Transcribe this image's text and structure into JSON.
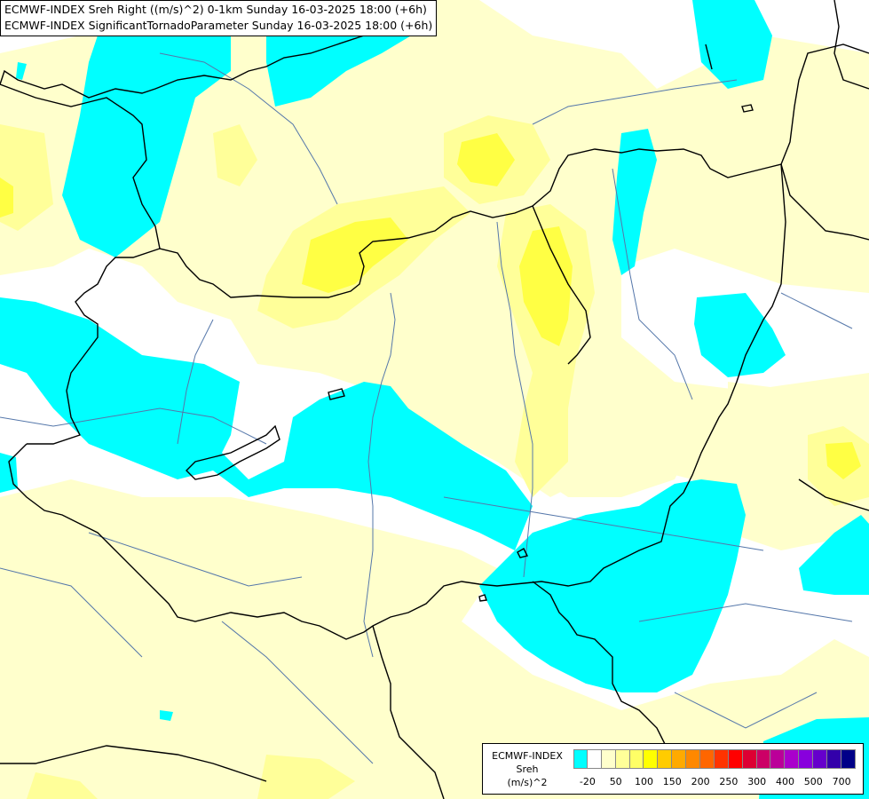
{
  "titles": {
    "line1": "ECMWF-INDEX Sreh Right ((m/s)^2) 0-1km Sunday 16-03-2025 18:00 (+6h)",
    "line2": "ECMWF-INDEX SignificantTornadoParameter Sunday 16-03-2025 18:00 (+6h)"
  },
  "legend": {
    "line1": "ECMWF-INDEX",
    "line2": "Sreh",
    "line3": "(m/s)^2",
    "colors": [
      "#00ffff",
      "#ffffff",
      "#ffffcc",
      "#ffff99",
      "#ffff66",
      "#ffff00",
      "#ffcc00",
      "#ffaa00",
      "#ff8800",
      "#ff6600",
      "#ff3300",
      "#ff0000",
      "#dd0033",
      "#cc0066",
      "#bb0099",
      "#aa00cc",
      "#8800dd",
      "#6600cc",
      "#3300aa",
      "#000088"
    ],
    "ticks": [
      "-20",
      "50",
      "100",
      "150",
      "200",
      "250",
      "300",
      "400",
      "500",
      "700"
    ]
  },
  "colors": {
    "cyan": "#00ffff",
    "light_yellow": "#ffffcc",
    "pale_yellow": "#ffff99",
    "yellow": "#ffff44",
    "borders": "#000000",
    "rivers": "#5577aa"
  }
}
